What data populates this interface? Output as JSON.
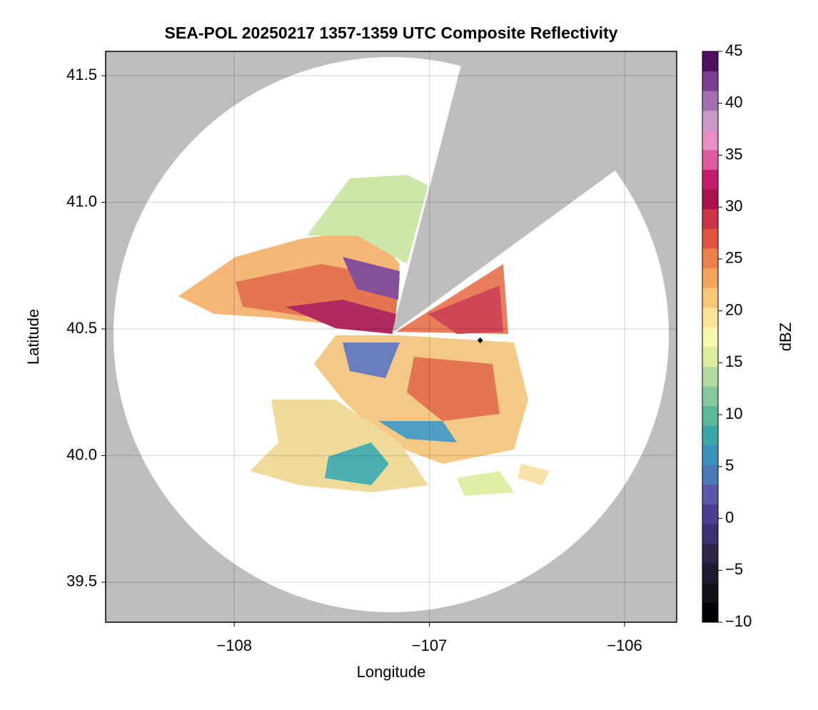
{
  "chart_data": {
    "type": "radar",
    "title": "SEA-POL 20250217 1357-1359 UTC Composite Reflectivity",
    "x_label": "Longitude",
    "y_label": "Latitude",
    "xlim": [
      -108.659,
      -105.733
    ],
    "ylim": [
      39.342,
      41.596
    ],
    "xticks": [
      {
        "value": -108,
        "label": "−108"
      },
      {
        "value": -107,
        "label": "−107"
      },
      {
        "value": -106,
        "label": "−106"
      }
    ],
    "yticks": [
      39.5,
      {
        "value": 40,
        "label": "40.0"
      },
      40.5,
      {
        "value": 41,
        "label": "41.0"
      },
      41.5
    ],
    "grid": true,
    "background": "#bebebe",
    "marker": {
      "x": -106.74,
      "y": 40.455,
      "color": "#000000"
    },
    "colorbar": {
      "label": "dBZ",
      "lim": [
        -10,
        45
      ],
      "ticks": [
        {
          "value": -10,
          "label": "−10"
        },
        {
          "value": -5,
          "label": "−5"
        },
        0,
        5,
        10,
        15,
        20,
        25,
        30,
        35,
        40,
        45
      ],
      "colors": [
        "#000004",
        "#141018",
        "#1f1a2e",
        "#2d2448",
        "#3b3070",
        "#4a3f8f",
        "#5a56a8",
        "#4a7ab8",
        "#3b94bb",
        "#3aa8a8",
        "#5cb89a",
        "#88c89e",
        "#b5dca0",
        "#dcee9e",
        "#f7f7b0",
        "#fbe49a",
        "#f8c876",
        "#f5a45c",
        "#ee7f4a",
        "#e05540",
        "#cc3546",
        "#a8124e",
        "#c41e6a",
        "#de5a9e",
        "#e890c4",
        "#c898c8",
        "#a570b0",
        "#7a3d90",
        "#4f1060"
      ]
    }
  }
}
